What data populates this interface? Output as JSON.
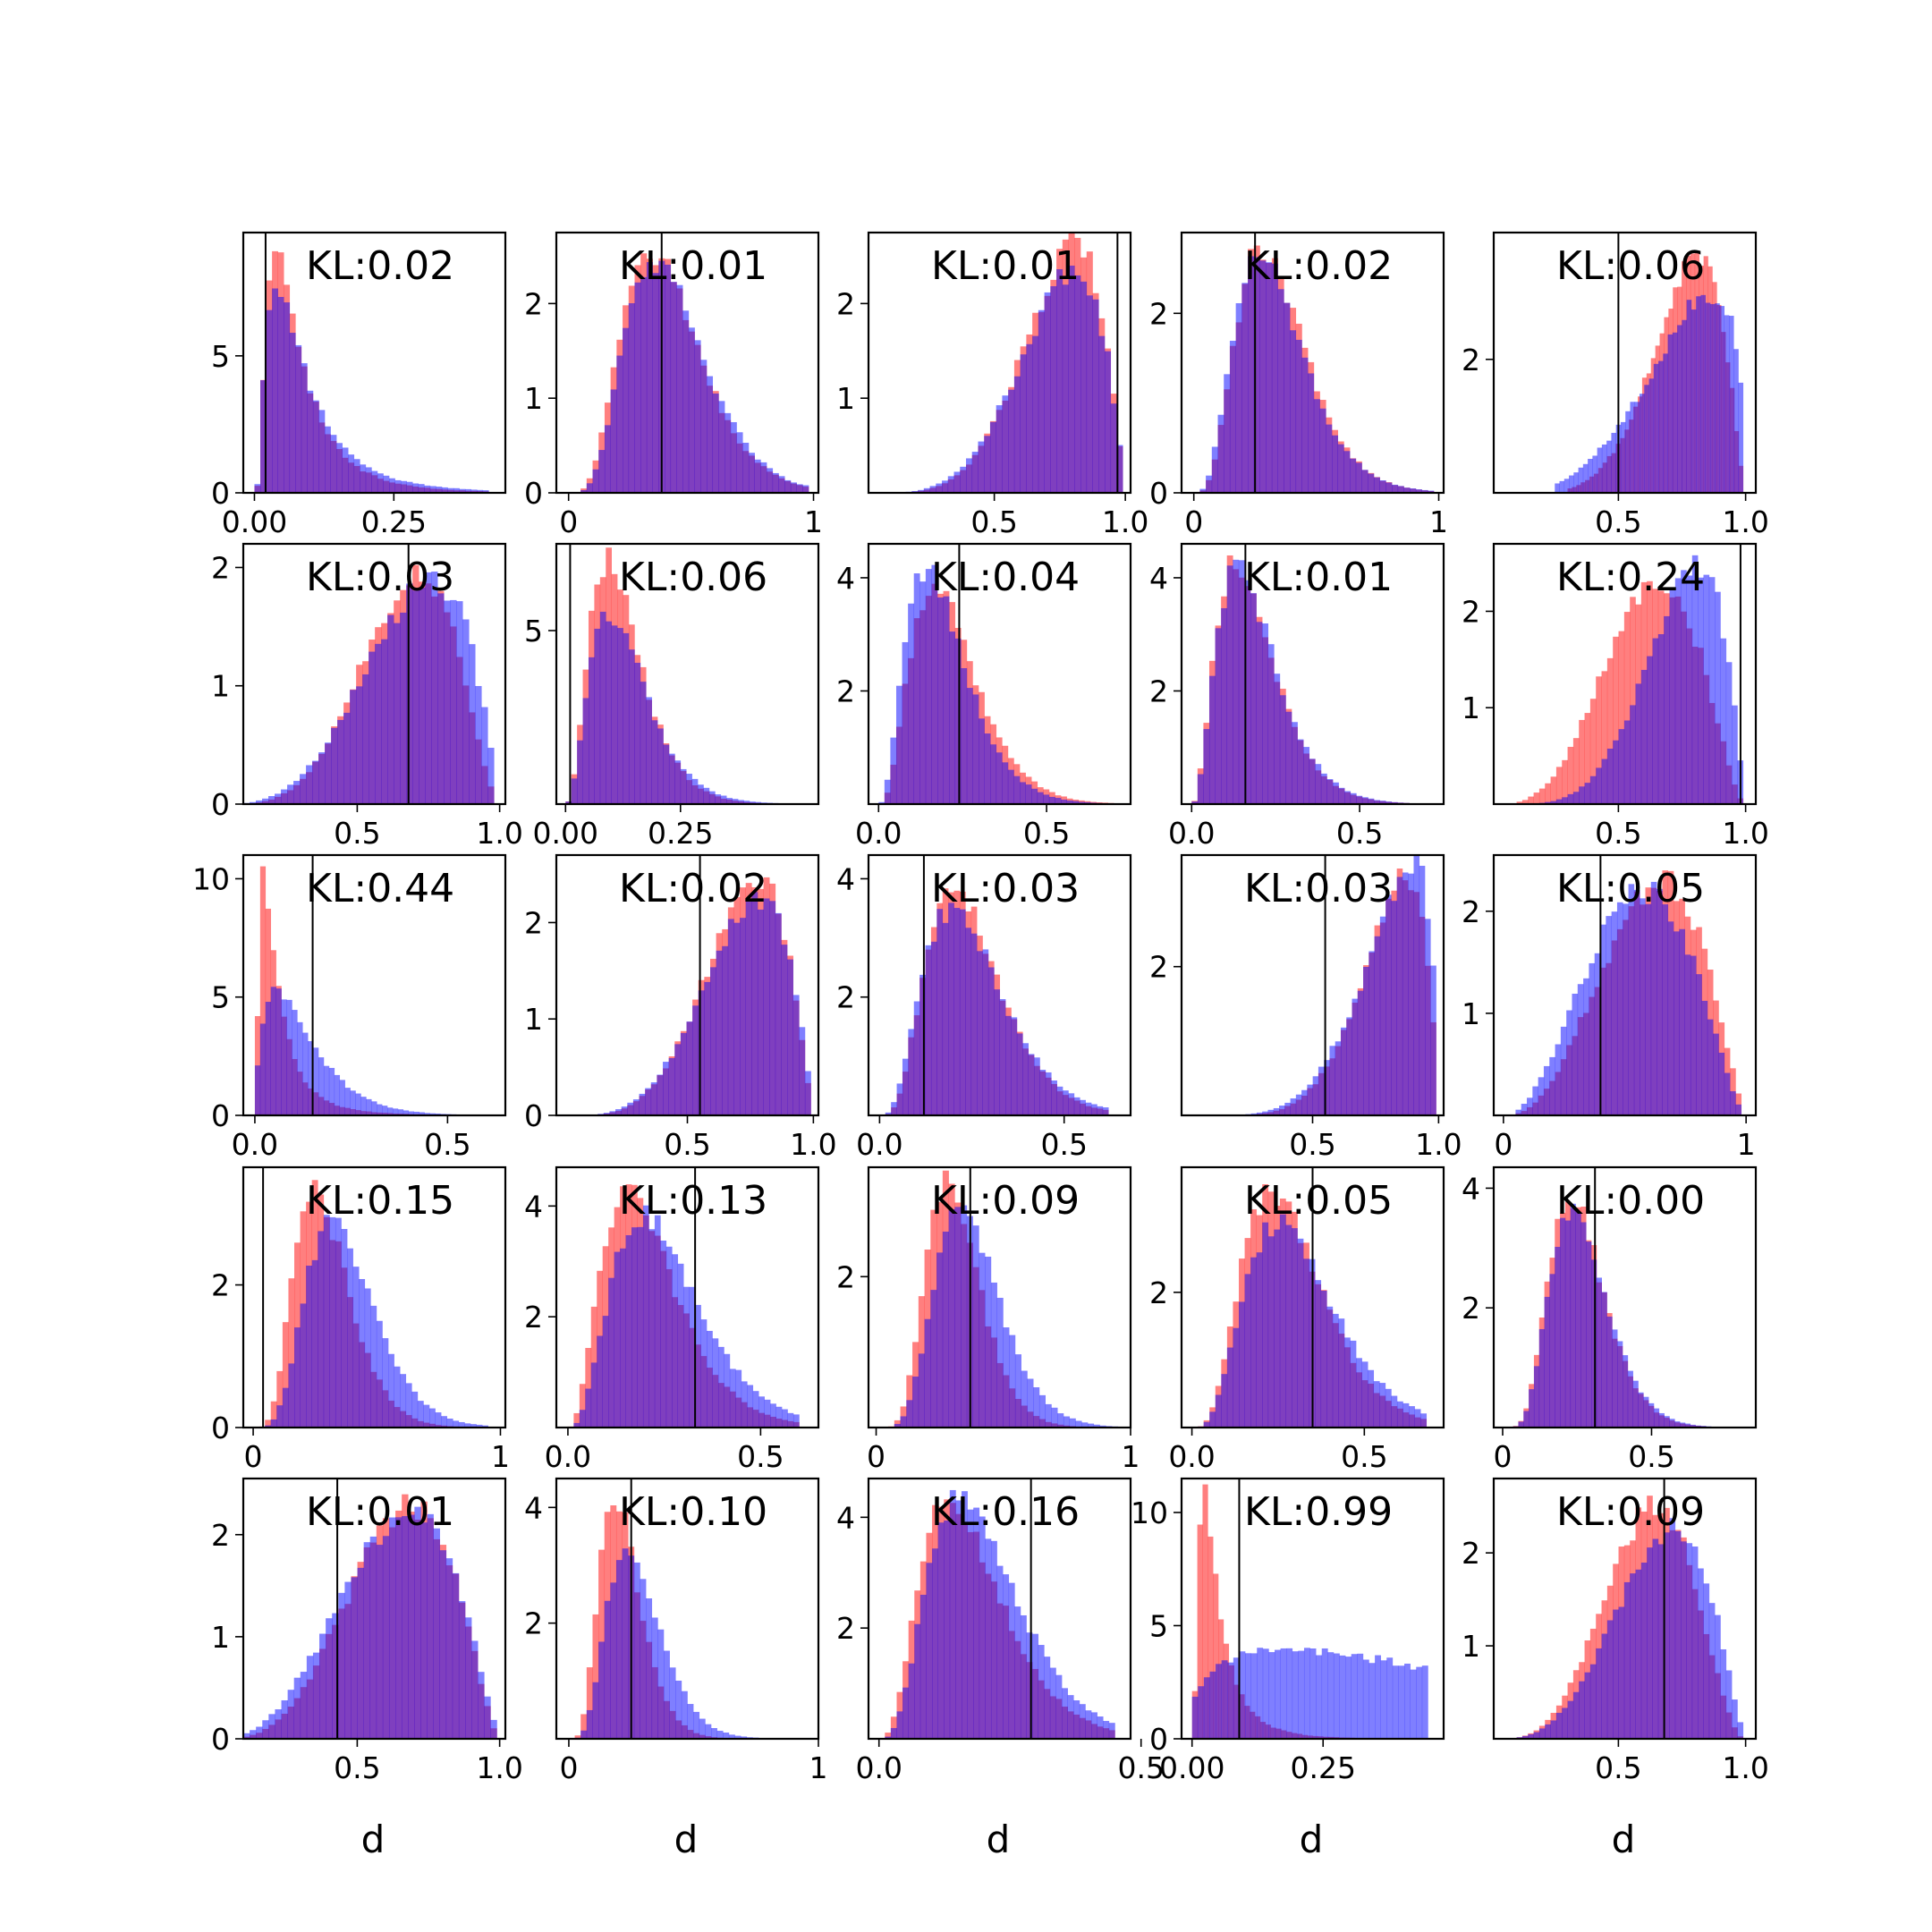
{
  "figure": {
    "grid": [
      5,
      5
    ],
    "series_colors": {
      "red": "#ff0000",
      "blue": "#0000ff",
      "overlap": "#7e3ac0",
      "vline": "#000000"
    },
    "series_alpha": 0.5,
    "bins": 40,
    "xlabel": "d"
  },
  "chart_data": [
    {
      "type": "bar",
      "kl_label": "KL:0.02",
      "xlim": [
        -0.02,
        0.45
      ],
      "ylim": [
        0,
        9.5
      ],
      "xticks": [
        0,
        0.25
      ],
      "xticklabels": [
        "0.00",
        "0.25"
      ],
      "yticks": [
        0,
        5
      ],
      "yticklabels": [
        "0",
        "5"
      ],
      "vline": 0.02,
      "red": {
        "kind": "lognormal",
        "mu": -2.7,
        "sigma": 0.75,
        "range": [
          0,
          0.42
        ],
        "peak": 8.6,
        "mode": 0.04
      },
      "blue": {
        "kind": "lognormal",
        "mu": -2.6,
        "sigma": 0.8,
        "range": [
          0,
          0.42
        ],
        "peak": 7.7,
        "mode": 0.04
      }
    },
    {
      "type": "bar",
      "kl_label": "KL:0.01",
      "xlim": [
        -0.05,
        1.02
      ],
      "ylim": [
        0,
        2.75
      ],
      "xticks": [
        0,
        1
      ],
      "xticklabels": [
        "0",
        "1"
      ],
      "yticks": [
        0,
        1,
        2
      ],
      "yticklabels": [
        "0",
        "1",
        "2"
      ],
      "vline": 0.38,
      "red": {
        "kind": "gamma",
        "shape": 5.5,
        "scale": 0.075,
        "range": [
          0,
          0.98
        ],
        "peak": 2.55,
        "mode": 0.34
      },
      "blue": {
        "kind": "gamma",
        "shape": 5.8,
        "scale": 0.074,
        "range": [
          0,
          0.98
        ],
        "peak": 2.45,
        "mode": 0.37
      }
    },
    {
      "type": "bar",
      "kl_label": "KL:0.01",
      "xlim": [
        0.02,
        1.02
      ],
      "ylim": [
        0,
        2.75
      ],
      "xticks": [
        0.5,
        1
      ],
      "xticklabels": [
        "0.5",
        "1.0"
      ],
      "yticks": [
        1,
        2
      ],
      "yticklabels": [
        "1",
        "2"
      ],
      "vline": 0.97,
      "red": {
        "kind": "beta",
        "a": 6,
        "b": 2.2,
        "range": [
          0.07,
          0.99
        ],
        "peak": 2.6,
        "mode": 0.86
      },
      "blue": {
        "kind": "beta",
        "a": 5.5,
        "b": 2.1,
        "range": [
          0.07,
          0.99
        ],
        "peak": 2.35,
        "mode": 0.86
      }
    },
    {
      "type": "bar",
      "kl_label": "KL:0.02",
      "xlim": [
        -0.05,
        1.02
      ],
      "ylim": [
        0,
        2.9
      ],
      "xticks": [
        0,
        1
      ],
      "xticklabels": [
        "0",
        "1"
      ],
      "yticks": [
        0,
        2
      ],
      "yticklabels": [
        "0",
        "2"
      ],
      "vline": 0.25,
      "red": {
        "kind": "gamma",
        "shape": 5,
        "scale": 0.07,
        "range": [
          0,
          0.98
        ],
        "peak": 2.75,
        "mode": 0.28
      },
      "blue": {
        "kind": "gamma",
        "shape": 4.6,
        "scale": 0.075,
        "range": [
          0,
          0.98
        ],
        "peak": 2.6,
        "mode": 0.28
      }
    },
    {
      "type": "bar",
      "kl_label": "KL:0.06",
      "xlim": [
        0.01,
        1.04
      ],
      "ylim": [
        0,
        3.9
      ],
      "xticks": [
        0.5,
        1
      ],
      "xticklabels": [
        "0.5",
        "1.0"
      ],
      "yticks": [
        2
      ],
      "yticklabels": [
        "2"
      ],
      "vline": 0.5,
      "red": {
        "kind": "beta",
        "a": 7,
        "b": 2.4,
        "range": [
          0.3,
          0.99
        ],
        "peak": 3.5,
        "mode": 0.84
      },
      "blue": {
        "kind": "beta",
        "a": 4.2,
        "b": 1.5,
        "range": [
          0.25,
          0.99
        ],
        "peak": 3.0,
        "mode": 0.93
      }
    },
    {
      "type": "bar",
      "kl_label": "KL:0.03",
      "xlim": [
        0.1,
        1.02
      ],
      "ylim": [
        0,
        2.2
      ],
      "xticks": [
        0.5,
        1
      ],
      "xticklabels": [
        "0.5",
        "1.0"
      ],
      "yticks": [
        0,
        1,
        2
      ],
      "yticklabels": [
        "0",
        "1",
        "2"
      ],
      "vline": 0.68,
      "red": {
        "kind": "beta",
        "a": 5.5,
        "b": 2.8,
        "range": [
          0.1,
          0.98
        ],
        "peak": 1.95,
        "mode": 0.7
      },
      "blue": {
        "kind": "beta",
        "a": 4.5,
        "b": 2.1,
        "range": [
          0.1,
          0.98
        ],
        "peak": 1.9,
        "mode": 0.75
      }
    },
    {
      "type": "bar",
      "kl_label": "KL:0.06",
      "xlim": [
        -0.02,
        0.55
      ],
      "ylim": [
        0,
        7.5
      ],
      "xticks": [
        0,
        0.25
      ],
      "xticklabels": [
        "0.00",
        "0.25"
      ],
      "yticks": [
        5
      ],
      "yticklabels": [
        "5"
      ],
      "vline": 0.01,
      "red": {
        "kind": "gamma",
        "shape": 3.6,
        "scale": 0.035,
        "range": [
          0,
          0.5
        ],
        "peak": 7.0,
        "mode": 0.09
      },
      "blue": {
        "kind": "gamma",
        "shape": 3.4,
        "scale": 0.04,
        "range": [
          0,
          0.5
        ],
        "peak": 5.4,
        "mode": 0.1
      }
    },
    {
      "type": "bar",
      "kl_label": "KL:0.04",
      "xlim": [
        -0.03,
        0.75
      ],
      "ylim": [
        0,
        4.6
      ],
      "xticks": [
        0,
        0.5
      ],
      "xticklabels": [
        "0.0",
        "0.5"
      ],
      "yticks": [
        2,
        4
      ],
      "yticklabels": [
        "2",
        "4"
      ],
      "vline": 0.24,
      "red": {
        "kind": "gamma",
        "shape": 4,
        "scale": 0.055,
        "range": [
          0,
          0.7
        ],
        "peak": 3.9,
        "mode": 0.17
      },
      "blue": {
        "kind": "gamma",
        "shape": 3.6,
        "scale": 0.055,
        "range": [
          0,
          0.7
        ],
        "peak": 4.2,
        "mode": 0.15
      }
    },
    {
      "type": "bar",
      "kl_label": "KL:0.01",
      "xlim": [
        -0.03,
        0.75
      ],
      "ylim": [
        0,
        4.6
      ],
      "xticks": [
        0,
        0.5
      ],
      "xticklabels": [
        "0.0",
        "0.5"
      ],
      "yticks": [
        2,
        4
      ],
      "yticklabels": [
        "2",
        "4"
      ],
      "vline": 0.16,
      "red": {
        "kind": "gamma",
        "shape": 3.4,
        "scale": 0.055,
        "range": [
          0,
          0.7
        ],
        "peak": 4.3,
        "mode": 0.14
      },
      "blue": {
        "kind": "gamma",
        "shape": 3.5,
        "scale": 0.055,
        "range": [
          0,
          0.7
        ],
        "peak": 4.2,
        "mode": 0.15
      }
    },
    {
      "type": "bar",
      "kl_label": "KL:0.24",
      "xlim": [
        0.01,
        1.04
      ],
      "ylim": [
        0,
        2.7
      ],
      "xticks": [
        0.5,
        1
      ],
      "xticklabels": [
        "0.5",
        "1.0"
      ],
      "yticks": [
        1,
        2
      ],
      "yticklabels": [
        "1",
        "2"
      ],
      "vline": 0.98,
      "red": {
        "kind": "beta",
        "a": 4.5,
        "b": 2.8,
        "range": [
          0.1,
          0.99
        ],
        "peak": 2.3,
        "mode": 0.65
      },
      "blue": {
        "kind": "beta",
        "a": 6,
        "b": 2.2,
        "range": [
          0.1,
          0.99
        ],
        "peak": 2.5,
        "mode": 0.78
      }
    },
    {
      "type": "bar",
      "kl_label": "KL:0.44",
      "xlim": [
        -0.03,
        0.65
      ],
      "ylim": [
        0,
        11
      ],
      "xticks": [
        0,
        0.5
      ],
      "xticklabels": [
        "0.0",
        "0.5"
      ],
      "yticks": [
        0,
        5,
        10
      ],
      "yticklabels": [
        "0",
        "5",
        "10"
      ],
      "vline": 0.15,
      "red": {
        "kind": "lognormal",
        "mu": -3,
        "sigma": 0.9,
        "range": [
          0,
          0.55
        ],
        "peak": 10.2,
        "mode": 0.03
      },
      "blue": {
        "kind": "gamma",
        "shape": 1.8,
        "scale": 0.07,
        "range": [
          0,
          0.55
        ],
        "peak": 5.3,
        "mode": 0.06
      }
    },
    {
      "type": "bar",
      "kl_label": "KL:0.02",
      "xlim": [
        -0.02,
        1.02
      ],
      "ylim": [
        0,
        2.7
      ],
      "xticks": [
        0.5,
        1
      ],
      "xticklabels": [
        "0.5",
        "1.0"
      ],
      "yticks": [
        0,
        1,
        2
      ],
      "yticklabels": [
        "0",
        "1",
        "2"
      ],
      "vline": 0.55,
      "red": {
        "kind": "beta",
        "a": 5.5,
        "b": 2.3,
        "range": [
          0.05,
          0.99
        ],
        "peak": 2.45,
        "mode": 0.78
      },
      "blue": {
        "kind": "beta",
        "a": 5,
        "b": 2.1,
        "range": [
          0.05,
          0.99
        ],
        "peak": 2.25,
        "mode": 0.79
      }
    },
    {
      "type": "bar",
      "kl_label": "KL:0.03",
      "xlim": [
        -0.03,
        0.68
      ],
      "ylim": [
        0,
        4.4
      ],
      "xticks": [
        0,
        0.5
      ],
      "xticklabels": [
        "0.0",
        "0.5"
      ],
      "yticks": [
        2,
        4
      ],
      "yticklabels": [
        "2",
        "4"
      ],
      "vline": 0.12,
      "red": {
        "kind": "gamma",
        "shape": 5,
        "scale": 0.05,
        "range": [
          0,
          0.62
        ],
        "peak": 3.8,
        "mode": 0.21
      },
      "blue": {
        "kind": "gamma",
        "shape": 4.4,
        "scale": 0.058,
        "range": [
          0,
          0.62
        ],
        "peak": 3.5,
        "mode": 0.22
      }
    },
    {
      "type": "bar",
      "kl_label": "KL:0.03",
      "xlim": [
        -0.02,
        1.02
      ],
      "ylim": [
        0,
        3.5
      ],
      "xticks": [
        0.5,
        1
      ],
      "xticklabels": [
        "0.5",
        "1.0"
      ],
      "yticks": [
        2
      ],
      "yticklabels": [
        "2"
      ],
      "vline": 0.55,
      "red": {
        "kind": "beta",
        "a": 7,
        "b": 1.9,
        "range": [
          0.1,
          0.99
        ],
        "peak": 3.2,
        "mode": 0.89
      },
      "blue": {
        "kind": "beta",
        "a": 6,
        "b": 1.6,
        "range": [
          0.1,
          0.99
        ],
        "peak": 3.4,
        "mode": 0.95
      }
    },
    {
      "type": "bar",
      "kl_label": "KL:0.05",
      "xlim": [
        -0.04,
        1.04
      ],
      "ylim": [
        0,
        2.55
      ],
      "xticks": [
        0,
        1
      ],
      "xticklabels": [
        "0",
        "1"
      ],
      "yticks": [
        1,
        2
      ],
      "yticklabels": [
        "1",
        "2"
      ],
      "vline": 0.4,
      "red": {
        "kind": "beta",
        "a": 3.6,
        "b": 2.4,
        "range": [
          0.05,
          0.98
        ],
        "peak": 2.3,
        "mode": 0.6
      },
      "blue": {
        "kind": "beta",
        "a": 3.2,
        "b": 2.6,
        "range": [
          0.05,
          0.98
        ],
        "peak": 2.2,
        "mode": 0.5
      }
    },
    {
      "type": "bar",
      "kl_label": "KL:0.15",
      "xlim": [
        -0.04,
        1.02
      ],
      "ylim": [
        0,
        3.65
      ],
      "xticks": [
        0,
        1
      ],
      "xticklabels": [
        "0",
        "1"
      ],
      "yticks": [
        0,
        2
      ],
      "yticklabels": [
        "0",
        "2"
      ],
      "vline": 0.04,
      "red": {
        "kind": "gamma",
        "shape": 6,
        "scale": 0.05,
        "range": [
          0,
          0.95
        ],
        "peak": 3.3,
        "mode": 0.27
      },
      "blue": {
        "kind": "gamma",
        "shape": 6.3,
        "scale": 0.06,
        "range": [
          0,
          0.95
        ],
        "peak": 2.85,
        "mode": 0.33
      }
    },
    {
      "type": "bar",
      "kl_label": "KL:0.13",
      "xlim": [
        -0.03,
        0.65
      ],
      "ylim": [
        0,
        4.7
      ],
      "xticks": [
        0,
        0.5
      ],
      "xticklabels": [
        "0.0",
        "0.5"
      ],
      "yticks": [
        2,
        4
      ],
      "yticklabels": [
        "2",
        "4"
      ],
      "vline": 0.33,
      "red": {
        "kind": "gamma",
        "shape": 3.6,
        "scale": 0.06,
        "range": [
          0,
          0.6
        ],
        "peak": 4.2,
        "mode": 0.17
      },
      "blue": {
        "kind": "gamma",
        "shape": 4,
        "scale": 0.065,
        "range": [
          0,
          0.6
        ],
        "peak": 3.8,
        "mode": 0.2
      }
    },
    {
      "type": "bar",
      "kl_label": "KL:0.09",
      "xlim": [
        -0.03,
        1.0
      ],
      "ylim": [
        0,
        3.45
      ],
      "xticks": [
        0,
        1
      ],
      "xticklabels": [
        "0",
        "1"
      ],
      "yticks": [
        2
      ],
      "yticklabels": [
        "2"
      ],
      "vline": 0.37,
      "red": {
        "kind": "gamma",
        "shape": 8,
        "scale": 0.04,
        "range": [
          0,
          0.95
        ],
        "peak": 3.25,
        "mode": 0.29
      },
      "blue": {
        "kind": "gamma",
        "shape": 7.6,
        "scale": 0.05,
        "range": [
          0,
          0.95
        ],
        "peak": 2.9,
        "mode": 0.37
      }
    },
    {
      "type": "bar",
      "kl_label": "KL:0.05",
      "xlim": [
        -0.03,
        0.73
      ],
      "ylim": [
        0,
        3.85
      ],
      "xticks": [
        0,
        0.5
      ],
      "xticklabels": [
        "0.0",
        "0.5"
      ],
      "yticks": [
        2
      ],
      "yticklabels": [
        "2"
      ],
      "vline": 0.35,
      "red": {
        "kind": "gamma",
        "shape": 5,
        "scale": 0.058,
        "range": [
          0,
          0.68
        ],
        "peak": 3.5,
        "mode": 0.24
      },
      "blue": {
        "kind": "gamma",
        "shape": 4.8,
        "scale": 0.066,
        "range": [
          0,
          0.68
        ],
        "peak": 3.05,
        "mode": 0.26
      }
    },
    {
      "type": "bar",
      "kl_label": "KL:0.00",
      "xlim": [
        -0.03,
        0.85
      ],
      "ylim": [
        0,
        4.35
      ],
      "xticks": [
        0,
        0.5
      ],
      "xticklabels": [
        "0",
        "0.5"
      ],
      "yticks": [
        2,
        4
      ],
      "yticklabels": [
        "2",
        "4"
      ],
      "vline": 0.31,
      "red": {
        "kind": "gamma",
        "shape": 7,
        "scale": 0.038,
        "range": [
          0,
          0.7
        ],
        "peak": 3.85,
        "mode": 0.24
      },
      "blue": {
        "kind": "gamma",
        "shape": 7,
        "scale": 0.039,
        "range": [
          0,
          0.7
        ],
        "peak": 3.7,
        "mode": 0.25
      }
    },
    {
      "type": "bar",
      "kl_label": "KL:0.01",
      "xlim": [
        0.1,
        1.02
      ],
      "ylim": [
        0,
        2.55
      ],
      "xticks": [
        0.5,
        1
      ],
      "xticklabels": [
        "0.5",
        "1.0"
      ],
      "yticks": [
        0,
        1,
        2
      ],
      "yticklabels": [
        "0",
        "1",
        "2"
      ],
      "vline": 0.43,
      "red": {
        "kind": "beta",
        "a": 4.5,
        "b": 2.6,
        "range": [
          0.1,
          0.99
        ],
        "peak": 2.3,
        "mode": 0.67
      },
      "blue": {
        "kind": "beta",
        "a": 3.8,
        "b": 2.3,
        "range": [
          0.1,
          0.99
        ],
        "peak": 2.2,
        "mode": 0.65
      }
    },
    {
      "type": "bar",
      "kl_label": "KL:0.10",
      "xlim": [
        -0.05,
        1.0
      ],
      "ylim": [
        0,
        4.5
      ],
      "xticks": [
        0,
        1
      ],
      "xticklabels": [
        "0",
        "1"
      ],
      "yticks": [
        2,
        4
      ],
      "yticklabels": [
        "2",
        "4"
      ],
      "vline": 0.25,
      "red": {
        "kind": "gamma",
        "shape": 6,
        "scale": 0.037,
        "range": [
          0,
          0.95
        ],
        "peak": 4.1,
        "mode": 0.18
      },
      "blue": {
        "kind": "gamma",
        "shape": 6,
        "scale": 0.047,
        "range": [
          0,
          0.95
        ],
        "peak": 3.35,
        "mode": 0.24
      }
    },
    {
      "type": "bar",
      "kl_label": "KL:0.16",
      "xlim": [
        -0.02,
        0.48
      ],
      "ylim": [
        0,
        4.7
      ],
      "xticks": [
        0,
        0.5
      ],
      "xticklabels": [
        "0.0",
        "0.5"
      ],
      "yticks": [
        2,
        4
      ],
      "yticklabels": [
        "2",
        "4"
      ],
      "vline": 0.29,
      "red": {
        "kind": "gamma",
        "shape": 4,
        "scale": 0.045,
        "range": [
          0,
          0.45
        ],
        "peak": 4.3,
        "mode": 0.14
      },
      "blue": {
        "kind": "gamma",
        "shape": 4.5,
        "scale": 0.045,
        "range": [
          0,
          0.45
        ],
        "peak": 4.4,
        "mode": 0.18
      }
    },
    {
      "type": "bar",
      "kl_label": "KL:0.99",
      "xlim": [
        -0.02,
        0.48
      ],
      "ylim": [
        0,
        11.5
      ],
      "xticks": [
        0,
        0.25
      ],
      "xticklabels": [
        "0.00",
        "0.25"
      ],
      "yticks": [
        0,
        5,
        10
      ],
      "yticklabels": [
        "0",
        "5",
        "10"
      ],
      "vline": 0.09,
      "red": {
        "kind": "lognormal",
        "mu": -3.2,
        "sigma": 0.8,
        "range": [
          0,
          0.4
        ],
        "peak": 10.8,
        "mode": 0.01
      },
      "blue": {
        "kind": "beta",
        "a": 1.3,
        "b": 2.3,
        "range": [
          0,
          0.45
        ],
        "peak": 3.9,
        "mode": 0.05
      }
    },
    {
      "type": "bar",
      "kl_label": "KL:0.09",
      "xlim": [
        0.01,
        1.04
      ],
      "ylim": [
        0,
        2.8
      ],
      "xticks": [
        0.5,
        1
      ],
      "xticklabels": [
        "0.5",
        "1.0"
      ],
      "yticks": [
        1,
        2
      ],
      "yticklabels": [
        "1",
        "2"
      ],
      "vline": 0.68,
      "red": {
        "kind": "beta",
        "a": 5,
        "b": 3.2,
        "range": [
          0.1,
          0.99
        ],
        "peak": 2.5,
        "mode": 0.64
      },
      "blue": {
        "kind": "beta",
        "a": 4.5,
        "b": 2.4,
        "range": [
          0.1,
          0.99
        ],
        "peak": 2.25,
        "mode": 0.7
      }
    }
  ]
}
